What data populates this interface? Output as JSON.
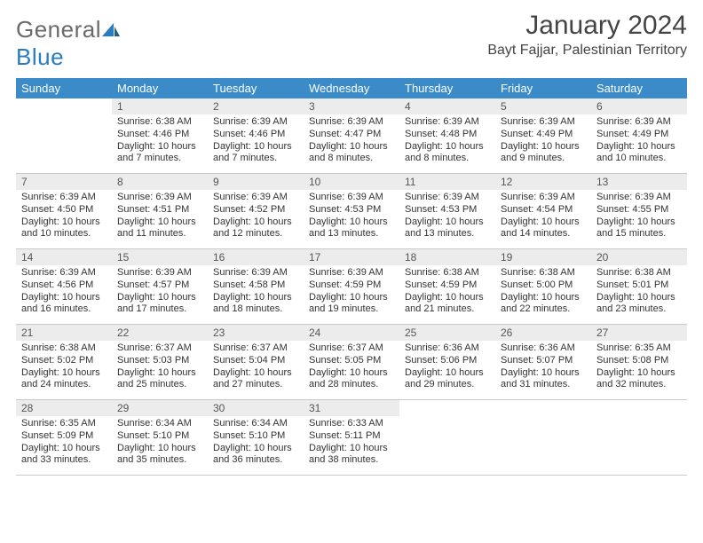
{
  "brand": {
    "part1": "General",
    "part2": "Blue"
  },
  "title": "January 2024",
  "location": "Bayt Fajjar, Palestinian Territory",
  "colors": {
    "header_bg": "#3b8bc9",
    "header_text": "#ffffff",
    "daynum_bg": "#ececec",
    "border": "#c9c9c9",
    "body_text": "#333333",
    "logo_gray": "#6a6a6a",
    "logo_blue": "#2a7bbf"
  },
  "weekdays": [
    "Sunday",
    "Monday",
    "Tuesday",
    "Wednesday",
    "Thursday",
    "Friday",
    "Saturday"
  ],
  "weeks": [
    [
      null,
      {
        "n": "1",
        "sr": "6:38 AM",
        "ss": "4:46 PM",
        "dl": "10 hours and 7 minutes."
      },
      {
        "n": "2",
        "sr": "6:39 AM",
        "ss": "4:46 PM",
        "dl": "10 hours and 7 minutes."
      },
      {
        "n": "3",
        "sr": "6:39 AM",
        "ss": "4:47 PM",
        "dl": "10 hours and 8 minutes."
      },
      {
        "n": "4",
        "sr": "6:39 AM",
        "ss": "4:48 PM",
        "dl": "10 hours and 8 minutes."
      },
      {
        "n": "5",
        "sr": "6:39 AM",
        "ss": "4:49 PM",
        "dl": "10 hours and 9 minutes."
      },
      {
        "n": "6",
        "sr": "6:39 AM",
        "ss": "4:49 PM",
        "dl": "10 hours and 10 minutes."
      }
    ],
    [
      {
        "n": "7",
        "sr": "6:39 AM",
        "ss": "4:50 PM",
        "dl": "10 hours and 10 minutes."
      },
      {
        "n": "8",
        "sr": "6:39 AM",
        "ss": "4:51 PM",
        "dl": "10 hours and 11 minutes."
      },
      {
        "n": "9",
        "sr": "6:39 AM",
        "ss": "4:52 PM",
        "dl": "10 hours and 12 minutes."
      },
      {
        "n": "10",
        "sr": "6:39 AM",
        "ss": "4:53 PM",
        "dl": "10 hours and 13 minutes."
      },
      {
        "n": "11",
        "sr": "6:39 AM",
        "ss": "4:53 PM",
        "dl": "10 hours and 13 minutes."
      },
      {
        "n": "12",
        "sr": "6:39 AM",
        "ss": "4:54 PM",
        "dl": "10 hours and 14 minutes."
      },
      {
        "n": "13",
        "sr": "6:39 AM",
        "ss": "4:55 PM",
        "dl": "10 hours and 15 minutes."
      }
    ],
    [
      {
        "n": "14",
        "sr": "6:39 AM",
        "ss": "4:56 PM",
        "dl": "10 hours and 16 minutes."
      },
      {
        "n": "15",
        "sr": "6:39 AM",
        "ss": "4:57 PM",
        "dl": "10 hours and 17 minutes."
      },
      {
        "n": "16",
        "sr": "6:39 AM",
        "ss": "4:58 PM",
        "dl": "10 hours and 18 minutes."
      },
      {
        "n": "17",
        "sr": "6:39 AM",
        "ss": "4:59 PM",
        "dl": "10 hours and 19 minutes."
      },
      {
        "n": "18",
        "sr": "6:38 AM",
        "ss": "4:59 PM",
        "dl": "10 hours and 21 minutes."
      },
      {
        "n": "19",
        "sr": "6:38 AM",
        "ss": "5:00 PM",
        "dl": "10 hours and 22 minutes."
      },
      {
        "n": "20",
        "sr": "6:38 AM",
        "ss": "5:01 PM",
        "dl": "10 hours and 23 minutes."
      }
    ],
    [
      {
        "n": "21",
        "sr": "6:38 AM",
        "ss": "5:02 PM",
        "dl": "10 hours and 24 minutes."
      },
      {
        "n": "22",
        "sr": "6:37 AM",
        "ss": "5:03 PM",
        "dl": "10 hours and 25 minutes."
      },
      {
        "n": "23",
        "sr": "6:37 AM",
        "ss": "5:04 PM",
        "dl": "10 hours and 27 minutes."
      },
      {
        "n": "24",
        "sr": "6:37 AM",
        "ss": "5:05 PM",
        "dl": "10 hours and 28 minutes."
      },
      {
        "n": "25",
        "sr": "6:36 AM",
        "ss": "5:06 PM",
        "dl": "10 hours and 29 minutes."
      },
      {
        "n": "26",
        "sr": "6:36 AM",
        "ss": "5:07 PM",
        "dl": "10 hours and 31 minutes."
      },
      {
        "n": "27",
        "sr": "6:35 AM",
        "ss": "5:08 PM",
        "dl": "10 hours and 32 minutes."
      }
    ],
    [
      {
        "n": "28",
        "sr": "6:35 AM",
        "ss": "5:09 PM",
        "dl": "10 hours and 33 minutes."
      },
      {
        "n": "29",
        "sr": "6:34 AM",
        "ss": "5:10 PM",
        "dl": "10 hours and 35 minutes."
      },
      {
        "n": "30",
        "sr": "6:34 AM",
        "ss": "5:10 PM",
        "dl": "10 hours and 36 minutes."
      },
      {
        "n": "31",
        "sr": "6:33 AM",
        "ss": "5:11 PM",
        "dl": "10 hours and 38 minutes."
      },
      null,
      null,
      null
    ]
  ],
  "labels": {
    "sunrise": "Sunrise:",
    "sunset": "Sunset:",
    "daylight": "Daylight:"
  }
}
